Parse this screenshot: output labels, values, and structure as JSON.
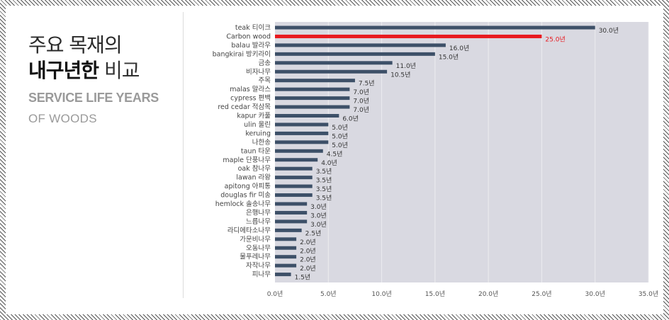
{
  "heading": {
    "line1": "주요 목재의",
    "line2_bold": "내구년한",
    "line2_light": " 비교",
    "en_line1": "SERVICE LIFE YEARS",
    "en_line2": "OF WOODS"
  },
  "colors": {
    "plot_bg": "#d9d9e1",
    "bar": "#3d5068",
    "highlight": "#e8191f"
  },
  "chart_data": {
    "type": "bar",
    "orientation": "horizontal",
    "categories": [
      "teak 티이크",
      "Carbon wood",
      "balau 발라우",
      "bangkirai 방키라이",
      "금송",
      "비자나무",
      "주목",
      "malas 말라스",
      "cypress 편백",
      "red cedar 적삼목",
      "kapur 카풀",
      "ulin 울린",
      "keruing",
      "나한송",
      "taun 타운",
      "maple 단풍나무",
      "oak 참나무",
      "lawan 라왕",
      "apitong 아피통",
      "douglas fir 미송",
      "hemlock 솔송나무",
      "은행나무",
      "느릅나무",
      "라디에타소나무",
      "가문비나무",
      "오동나무",
      "물푸레나무",
      "자작나무",
      "피나무"
    ],
    "values": [
      30.0,
      25.0,
      16.0,
      15.0,
      11.0,
      10.5,
      7.5,
      7.0,
      7.0,
      7.0,
      6.0,
      5.0,
      5.0,
      5.0,
      4.5,
      4.0,
      3.5,
      3.5,
      3.5,
      3.5,
      3.0,
      3.0,
      3.0,
      2.5,
      2.0,
      2.0,
      2.0,
      2.0,
      1.5
    ],
    "value_labels": [
      "30.0년",
      "25.0년",
      "16.0년",
      "15.0년",
      "11.0년",
      "10.5년",
      "7.5년",
      "7.0년",
      "7.0년",
      "7.0년",
      "6.0년",
      "5.0년",
      "5.0년",
      "5.0년",
      "4.5년",
      "4.0년",
      "3.5년",
      "3.5년",
      "3.5년",
      "3.5년",
      "3.0년",
      "3.0년",
      "3.0년",
      "2.5년",
      "2.0년",
      "2.0년",
      "2.0년",
      "2.0년",
      "1.5년"
    ],
    "highlight_index": 1,
    "xlim": [
      0,
      35
    ],
    "xticks": [
      0,
      5,
      10,
      15,
      20,
      25,
      30,
      35
    ],
    "xtick_labels": [
      "0.0년",
      "5.0년",
      "10.0년",
      "15.0년",
      "20.0년",
      "25.0년",
      "30.0년",
      "35.0년"
    ],
    "grid": "vertical",
    "legend": "none"
  }
}
